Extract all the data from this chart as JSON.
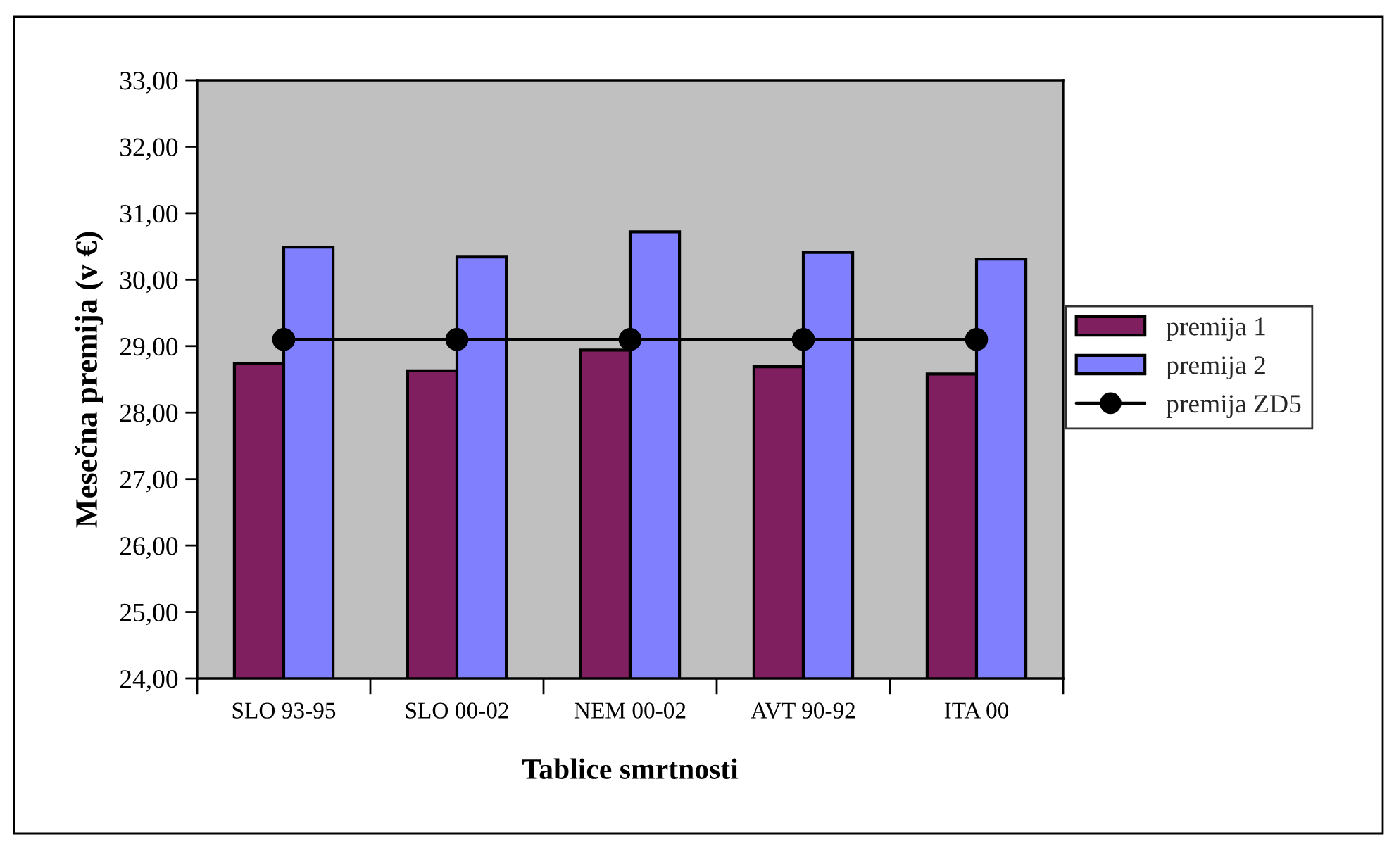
{
  "chart_data": {
    "type": "bar",
    "xlabel": "Tablice smrtnosti",
    "ylabel": "Mesečna premija (v €)",
    "categories": [
      "SLO 93-95",
      "SLO 00-02",
      "NEM 00-02",
      "AVT 90-92",
      "ITA 00"
    ],
    "series": [
      {
        "name": "premija 1",
        "color": "#7f1f5f",
        "values": [
          28.74,
          28.63,
          28.94,
          28.69,
          28.58
        ]
      },
      {
        "name": "premija 2",
        "color": "#8080ff",
        "values": [
          30.49,
          30.34,
          30.72,
          30.41,
          30.31
        ]
      },
      {
        "name": "premija ZD5",
        "type": "line",
        "color": "#000000",
        "marker": "circle",
        "values": [
          29.1,
          29.1,
          29.1,
          29.1,
          29.1
        ]
      }
    ],
    "ylim": [
      24,
      33
    ],
    "yticks": [
      {
        "value": 24,
        "label": "24,00"
      },
      {
        "value": 25,
        "label": "25,00"
      },
      {
        "value": 26,
        "label": "26,00"
      },
      {
        "value": 27,
        "label": "27,00"
      },
      {
        "value": 28,
        "label": "28,00"
      },
      {
        "value": 29,
        "label": "29,00"
      },
      {
        "value": 30,
        "label": "30,00"
      },
      {
        "value": 31,
        "label": "31,00"
      },
      {
        "value": 32,
        "label": "32,00"
      },
      {
        "value": 33,
        "label": "33,00"
      }
    ],
    "legend": "right",
    "grid": false
  }
}
